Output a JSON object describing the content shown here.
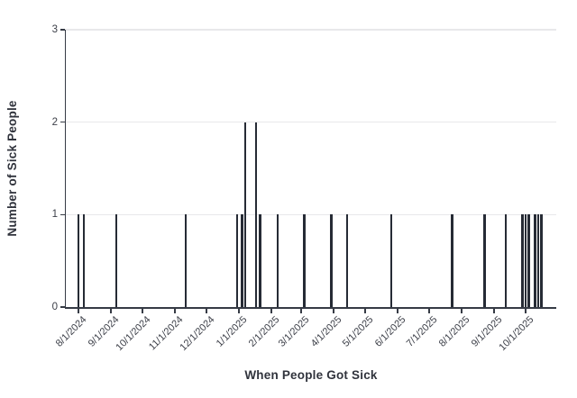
{
  "colors": {
    "bar": "#262b35",
    "axis": "#363b45",
    "grid": "#e8e8ea",
    "text": "#3b3e47",
    "title": "#30333c",
    "bg": "#ffffff"
  },
  "chart_data": {
    "type": "bar",
    "title": "",
    "xlabel": "When People Got Sick",
    "ylabel": "Number of Sick People",
    "x_tick_labels": [
      "8/1/2024",
      "9/1/2024",
      "10/1/2024",
      "11/1/2024",
      "12/1/2024",
      "1/1/2025",
      "2/1/2025",
      "3/1/2025",
      "4/1/2025",
      "5/1/2025",
      "6/1/2025",
      "7/1/2025",
      "8/1/2025",
      "9/1/2025",
      "10/1/2025"
    ],
    "y_tick_labels": [
      "0",
      "1",
      "2",
      "3"
    ],
    "ylim": [
      0,
      3
    ],
    "x_axis_end": "10/30/2025",
    "grid": "horizontal-only",
    "legend": "none",
    "bar_width_days": 2,
    "bars": [
      {
        "date": "8/1/2024",
        "count": 1
      },
      {
        "date": "8/6/2024",
        "count": 1
      },
      {
        "date": "9/6/2024",
        "count": 1
      },
      {
        "date": "11/11/2024",
        "count": 1
      },
      {
        "date": "12/30/2024",
        "count": 1
      },
      {
        "date": "1/4/2025",
        "count": 1
      },
      {
        "date": "1/7/2025",
        "count": 2
      },
      {
        "date": "1/17/2025",
        "count": 2
      },
      {
        "date": "1/21/2025",
        "count": 1
      },
      {
        "date": "2/7/2025",
        "count": 1
      },
      {
        "date": "3/4/2025",
        "count": 1
      },
      {
        "date": "3/30/2025",
        "count": 1
      },
      {
        "date": "4/14/2025",
        "count": 1
      },
      {
        "date": "5/26/2025",
        "count": 1
      },
      {
        "date": "7/23/2025",
        "count": 1
      },
      {
        "date": "8/23/2025",
        "count": 1
      },
      {
        "date": "9/12/2025",
        "count": 1
      },
      {
        "date": "9/28/2025",
        "count": 1
      },
      {
        "date": "10/1/2025",
        "count": 1
      },
      {
        "date": "10/4/2025",
        "count": 1
      },
      {
        "date": "10/10/2025",
        "count": 1
      },
      {
        "date": "10/13/2025",
        "count": 1
      },
      {
        "date": "10/16/2025",
        "count": 1
      }
    ]
  }
}
